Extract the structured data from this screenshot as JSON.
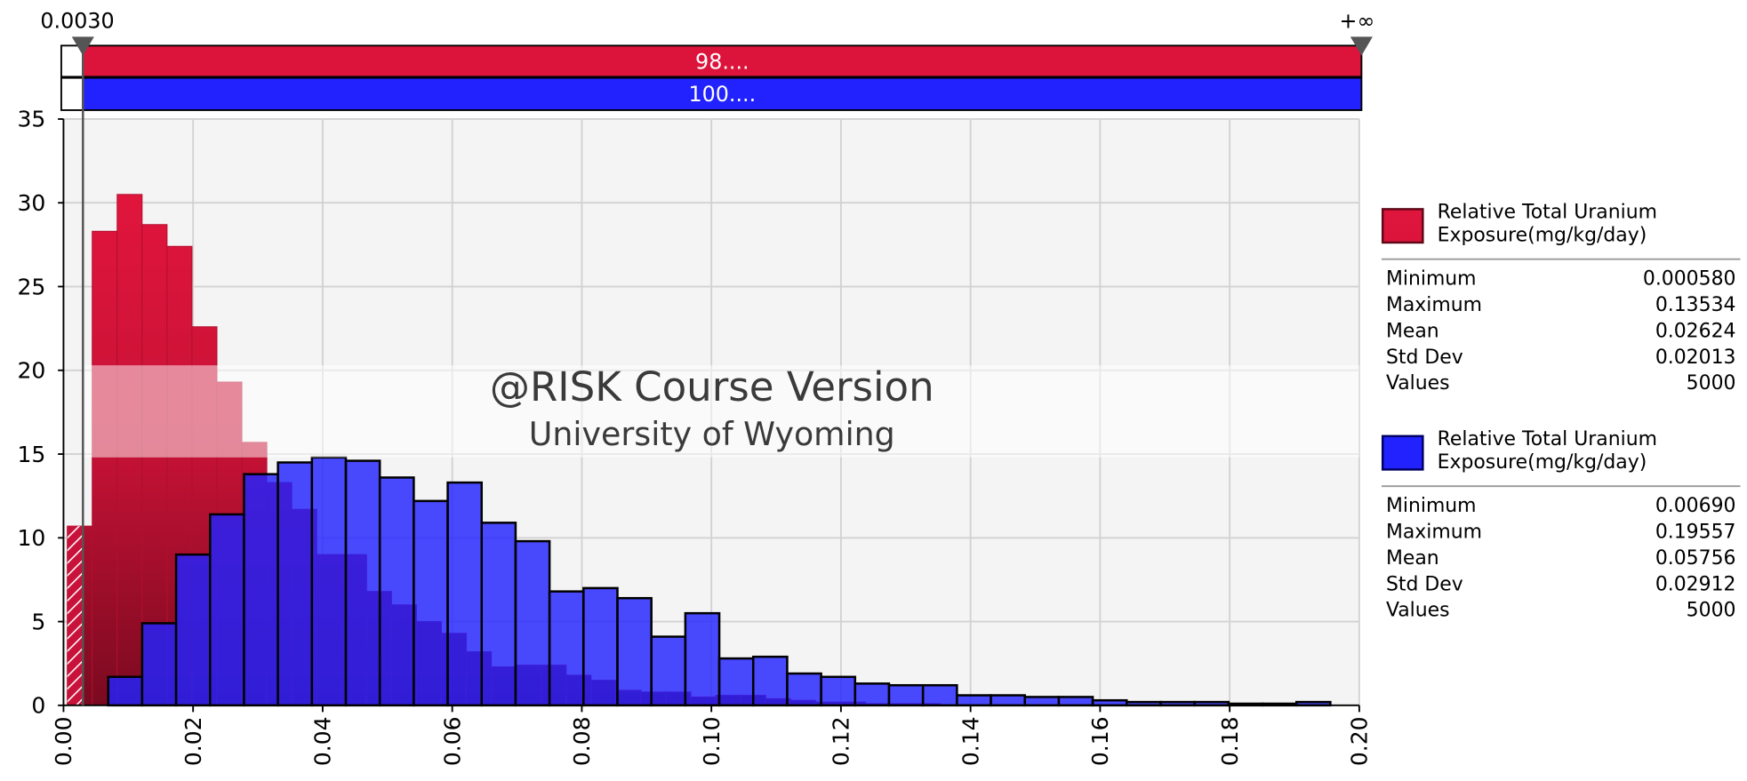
{
  "chart_data": {
    "type": "histogram",
    "xlim": [
      0,
      0.2
    ],
    "ylim": [
      0,
      35
    ],
    "xticks": [
      {
        "value": 0,
        "label": "0.00"
      },
      {
        "value": 0.02,
        "label": "0.02"
      },
      {
        "value": 0.04,
        "label": "0.04"
      },
      {
        "value": 0.06,
        "label": "0.06"
      },
      {
        "value": 0.08,
        "label": "0.08"
      },
      {
        "value": 0.1,
        "label": "0.10"
      },
      {
        "value": 0.12,
        "label": "0.12"
      },
      {
        "value": 0.14,
        "label": "0.14"
      },
      {
        "value": 0.16,
        "label": "0.16"
      },
      {
        "value": 0.18,
        "label": "0.18"
      },
      {
        "value": 0.2,
        "label": "0.20"
      }
    ],
    "yticks": [
      0,
      5,
      10,
      15,
      20,
      25,
      30,
      35
    ],
    "grid": true,
    "watermark": [
      "@RISK Course Version",
      "University of Wyoming"
    ],
    "delimiters": {
      "left": {
        "value": 0.003,
        "label": "0.0030"
      },
      "right": "+∞",
      "bar_labels": [
        "98....",
        "100...."
      ]
    },
    "series": [
      {
        "name": "Relative Total Uranium Exposure(mg/kg/day)",
        "color": "#dc143c",
        "bins": [
          0.00058,
          0.00443,
          0.00828,
          0.01213,
          0.01598,
          0.01983,
          0.02368,
          0.02753,
          0.03138,
          0.03523,
          0.03908,
          0.04293,
          0.04678,
          0.05063,
          0.05448,
          0.05833,
          0.06218,
          0.06603,
          0.06988,
          0.07373,
          0.07758,
          0.08143,
          0.08528,
          0.08913,
          0.09298,
          0.09683,
          0.10068,
          0.10453,
          0.10838,
          0.11223,
          0.11608,
          0.11993,
          0.12378,
          0.12763,
          0.13148,
          0.13533
        ],
        "values": [
          10.7,
          28.3,
          30.5,
          28.7,
          27.4,
          22.6,
          19.3,
          15.7,
          13.3,
          11.7,
          9.0,
          9.0,
          6.8,
          6.0,
          5.0,
          4.3,
          3.2,
          2.3,
          2.4,
          2.4,
          1.8,
          1.5,
          0.9,
          0.8,
          0.8,
          0.5,
          0.6,
          0.6,
          0.4,
          0.3,
          0.2,
          0.2,
          0.1,
          0.1,
          0.1
        ],
        "stats": [
          {
            "label": "Minimum",
            "value": "0.000580"
          },
          {
            "label": "Maximum",
            "value": "0.13534"
          },
          {
            "label": "Mean",
            "value": "0.02624"
          },
          {
            "label": "Std Dev",
            "value": "0.02013"
          },
          {
            "label": "Values",
            "value": "5000"
          }
        ]
      },
      {
        "name": "Relative Total Uranium Exposure(mg/kg/day)",
        "color": "#2222ff",
        "bins": [
          0.0069,
          0.01214,
          0.01738,
          0.02262,
          0.02786,
          0.0331,
          0.03834,
          0.04358,
          0.04882,
          0.05406,
          0.0593,
          0.06454,
          0.06978,
          0.07502,
          0.08026,
          0.0855,
          0.09074,
          0.09598,
          0.10122,
          0.10646,
          0.1117,
          0.11694,
          0.12218,
          0.12742,
          0.13266,
          0.1379,
          0.14314,
          0.14838,
          0.15362,
          0.15886,
          0.1641,
          0.16934,
          0.17458,
          0.17982,
          0.18506,
          0.1903,
          0.19554
        ],
        "values": [
          1.7,
          4.9,
          9.0,
          11.4,
          13.8,
          14.5,
          14.8,
          14.6,
          13.6,
          12.2,
          13.3,
          10.9,
          9.8,
          6.8,
          7.0,
          6.4,
          4.1,
          5.5,
          2.8,
          2.9,
          1.9,
          1.7,
          1.3,
          1.2,
          1.2,
          0.6,
          0.6,
          0.5,
          0.5,
          0.3,
          0.2,
          0.2,
          0.2,
          0.1,
          0.1,
          0.2
        ],
        "stats": [
          {
            "label": "Minimum",
            "value": "0.00690"
          },
          {
            "label": "Maximum",
            "value": "0.19557"
          },
          {
            "label": "Mean",
            "value": "0.05756"
          },
          {
            "label": "Std Dev",
            "value": "0.02912"
          },
          {
            "label": "Values",
            "value": "5000"
          }
        ]
      }
    ]
  }
}
